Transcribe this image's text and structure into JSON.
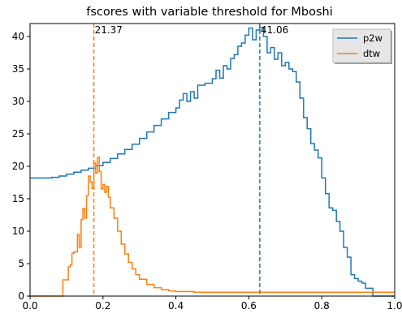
{
  "chart_data": {
    "type": "line",
    "title": "fscores with variable threshold for Mboshi",
    "xlabel": "",
    "ylabel": "",
    "xlim": [
      0.0,
      1.0
    ],
    "ylim": [
      0,
      42
    ],
    "xticks": [
      "0.0",
      "0.2",
      "0.4",
      "0.6",
      "0.8",
      "1.0"
    ],
    "yticks": [
      "0",
      "5",
      "10",
      "15",
      "20",
      "25",
      "30",
      "35",
      "40"
    ],
    "legend_position": "top-right",
    "grid": false,
    "series": [
      {
        "name": "p2w",
        "color": "#1f77b4",
        "points": [
          [
            0.0,
            18.2
          ],
          [
            0.06,
            18.3
          ],
          [
            0.08,
            18.5
          ],
          [
            0.1,
            18.8
          ],
          [
            0.12,
            19.1
          ],
          [
            0.14,
            19.4
          ],
          [
            0.16,
            19.7
          ],
          [
            0.18,
            20.1
          ],
          [
            0.2,
            20.6
          ],
          [
            0.22,
            21.2
          ],
          [
            0.24,
            21.9
          ],
          [
            0.26,
            22.6
          ],
          [
            0.28,
            23.4
          ],
          [
            0.3,
            24.3
          ],
          [
            0.32,
            25.3
          ],
          [
            0.34,
            26.3
          ],
          [
            0.36,
            27.3
          ],
          [
            0.38,
            28.3
          ],
          [
            0.4,
            29.0
          ],
          [
            0.41,
            30.2
          ],
          [
            0.42,
            31.2
          ],
          [
            0.43,
            30.0
          ],
          [
            0.44,
            31.5
          ],
          [
            0.45,
            30.5
          ],
          [
            0.46,
            32.5
          ],
          [
            0.48,
            32.8
          ],
          [
            0.5,
            33.5
          ],
          [
            0.51,
            34.8
          ],
          [
            0.52,
            33.6
          ],
          [
            0.53,
            35.5
          ],
          [
            0.54,
            35.0
          ],
          [
            0.55,
            36.6
          ],
          [
            0.56,
            37.2
          ],
          [
            0.57,
            38.5
          ],
          [
            0.58,
            39.0
          ],
          [
            0.59,
            40.2
          ],
          [
            0.6,
            41.3
          ],
          [
            0.61,
            39.5
          ],
          [
            0.62,
            41.0
          ],
          [
            0.63,
            41.4
          ],
          [
            0.64,
            40.0
          ],
          [
            0.65,
            37.5
          ],
          [
            0.66,
            38.3
          ],
          [
            0.67,
            36.5
          ],
          [
            0.68,
            37.5
          ],
          [
            0.69,
            35.5
          ],
          [
            0.7,
            36.0
          ],
          [
            0.71,
            35.0
          ],
          [
            0.72,
            34.6
          ],
          [
            0.73,
            33.0
          ],
          [
            0.74,
            30.5
          ],
          [
            0.75,
            27.5
          ],
          [
            0.76,
            25.8
          ],
          [
            0.77,
            23.5
          ],
          [
            0.78,
            22.5
          ],
          [
            0.79,
            21.3
          ],
          [
            0.8,
            18.2
          ],
          [
            0.81,
            15.8
          ],
          [
            0.82,
            13.6
          ],
          [
            0.83,
            13.2
          ],
          [
            0.84,
            11.5
          ],
          [
            0.85,
            10.0
          ],
          [
            0.86,
            7.5
          ],
          [
            0.87,
            6.0
          ],
          [
            0.88,
            3.3
          ],
          [
            0.89,
            2.7
          ],
          [
            0.9,
            2.3
          ],
          [
            0.91,
            2.0
          ],
          [
            0.92,
            1.2
          ],
          [
            0.94,
            0.0
          ],
          [
            1.0,
            0.0
          ]
        ]
      },
      {
        "name": "dtw",
        "color": "#ff7f0e",
        "points": [
          [
            0.0,
            0.0
          ],
          [
            0.085,
            0.0
          ],
          [
            0.09,
            2.5
          ],
          [
            0.1,
            2.5
          ],
          [
            0.105,
            4.5
          ],
          [
            0.11,
            4.8
          ],
          [
            0.115,
            6.6
          ],
          [
            0.12,
            6.8
          ],
          [
            0.13,
            9.5
          ],
          [
            0.135,
            7.5
          ],
          [
            0.14,
            11.8
          ],
          [
            0.145,
            13.5
          ],
          [
            0.15,
            12.0
          ],
          [
            0.155,
            15.5
          ],
          [
            0.16,
            18.5
          ],
          [
            0.165,
            17.6
          ],
          [
            0.17,
            16.6
          ],
          [
            0.175,
            20.5
          ],
          [
            0.18,
            19.0
          ],
          [
            0.185,
            21.4
          ],
          [
            0.19,
            19.2
          ],
          [
            0.195,
            16.5
          ],
          [
            0.2,
            17.2
          ],
          [
            0.205,
            16.0
          ],
          [
            0.21,
            16.9
          ],
          [
            0.215,
            15.2
          ],
          [
            0.22,
            13.6
          ],
          [
            0.23,
            12.0
          ],
          [
            0.24,
            10.0
          ],
          [
            0.25,
            8.0
          ],
          [
            0.26,
            6.5
          ],
          [
            0.27,
            5.2
          ],
          [
            0.28,
            4.2
          ],
          [
            0.29,
            3.3
          ],
          [
            0.3,
            2.6
          ],
          [
            0.32,
            1.8
          ],
          [
            0.34,
            1.3
          ],
          [
            0.36,
            1.0
          ],
          [
            0.38,
            0.8
          ],
          [
            0.4,
            0.7
          ],
          [
            0.45,
            0.6
          ],
          [
            0.5,
            0.6
          ],
          [
            0.6,
            0.6
          ],
          [
            0.7,
            0.6
          ],
          [
            0.8,
            0.6
          ],
          [
            0.9,
            0.6
          ],
          [
            1.0,
            0.6
          ]
        ]
      }
    ],
    "markers": [
      {
        "x": 0.175,
        "label": "21.37",
        "color": "#ff7f0e"
      },
      {
        "x": 0.63,
        "label": "41.06",
        "color": "#1f77b4"
      }
    ]
  }
}
